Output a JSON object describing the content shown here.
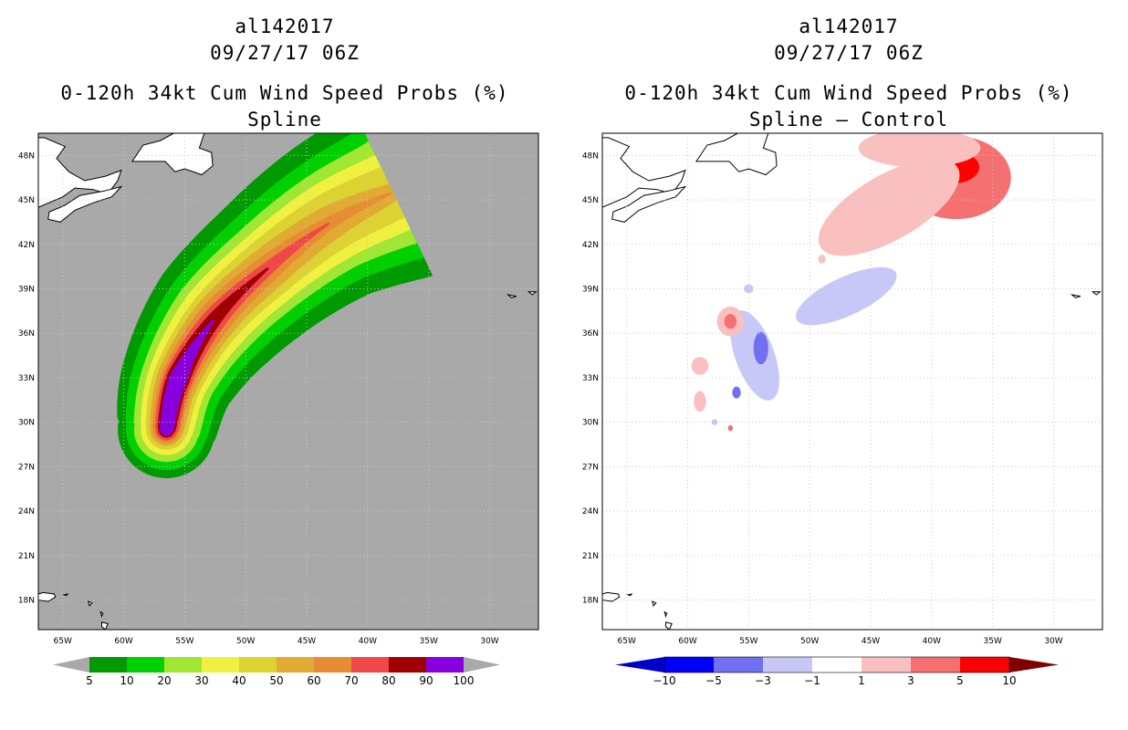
{
  "panels": [
    {
      "storm_id": "al142017",
      "datetime": "09/27/17 06Z",
      "title": "0-120h 34kt Cum Wind Speed Probs (%)",
      "subtitle": "Spline",
      "background": "#a9a9a9",
      "land_fill": "#ffffff"
    },
    {
      "storm_id": "al142017",
      "datetime": "09/27/17 06Z",
      "title": "0-120h 34kt Cum Wind Speed Probs (%)",
      "subtitle": "Spline – Control",
      "background": "#ffffff",
      "land_fill": "#ffffff"
    }
  ],
  "chart_data": [
    {
      "type": "heatmap",
      "title": "0-120h 34kt Cum Wind Speed Probs (%)",
      "subtitle": "Spline",
      "lon_range": [
        -67,
        -26
      ],
      "lat_range": [
        16,
        49.5
      ],
      "x_ticks": [
        "65W",
        "60W",
        "55W",
        "50W",
        "45W",
        "40W",
        "35W",
        "30W"
      ],
      "x_tick_values": [
        -65,
        -60,
        -55,
        -50,
        -45,
        -40,
        -35,
        -30
      ],
      "y_ticks": [
        "18N",
        "21N",
        "24N",
        "27N",
        "30N",
        "33N",
        "36N",
        "39N",
        "42N",
        "45N",
        "48N"
      ],
      "y_tick_values": [
        18,
        21,
        24,
        27,
        30,
        33,
        36,
        39,
        42,
        45,
        48
      ],
      "grid": true,
      "colorbar": {
        "labels": [
          "5",
          "10",
          "20",
          "30",
          "40",
          "50",
          "60",
          "70",
          "80",
          "90",
          "100"
        ],
        "colors": [
          "#009a00",
          "#00d000",
          "#a0e632",
          "#f0f040",
          "#dcd232",
          "#e1aa32",
          "#e68c32",
          "#f04848",
          "#a00000",
          "#8800dd"
        ]
      },
      "storm_track": [
        [
          -56.5,
          29.5
        ],
        [
          -55.5,
          33
        ],
        [
          -52.5,
          37
        ],
        [
          -48,
          40.5
        ],
        [
          -43,
          43.5
        ],
        [
          -38,
          45.5
        ]
      ],
      "levels": [
        {
          "min": 5,
          "color": "#009a00",
          "halfwidth": [
            3.6,
            4.2,
            5.0,
            5.4,
            6.0,
            6.8
          ]
        },
        {
          "min": 10,
          "color": "#00d000",
          "halfwidth": [
            3.0,
            3.4,
            4.0,
            4.3,
            4.7,
            5.3
          ]
        },
        {
          "min": 20,
          "color": "#a0e632",
          "halfwidth": [
            2.4,
            2.7,
            3.2,
            3.4,
            3.7,
            4.1
          ]
        },
        {
          "min": 30,
          "color": "#f0f040",
          "halfwidth": [
            1.9,
            2.2,
            2.6,
            2.7,
            2.9,
            3.0
          ]
        },
        {
          "min": 40,
          "color": "#dcd232",
          "halfwidth": [
            1.5,
            1.8,
            2.0,
            2.1,
            2.1,
            2.0
          ]
        },
        {
          "min": 50,
          "color": "#e1aa32",
          "halfwidth": [
            1.2,
            1.5,
            1.6,
            1.5,
            1.2,
            0.6
          ]
        },
        {
          "min": 60,
          "color": "#e68c32",
          "halfwidth": [
            1.0,
            1.2,
            1.2,
            0.9,
            0.4,
            0.0
          ]
        },
        {
          "min": 70,
          "color": "#f04848",
          "halfwidth": [
            0.8,
            1.0,
            0.8,
            0.4,
            0.0,
            0.0
          ]
        },
        {
          "min": 80,
          "color": "#a00000",
          "halfwidth": [
            0.6,
            0.8,
            0.45,
            0.0,
            0.0,
            0.0
          ]
        },
        {
          "min": 90,
          "color": "#8800dd",
          "halfwidth": [
            0.45,
            0.6,
            0.0,
            0.0,
            0.0,
            0.0
          ]
        }
      ]
    },
    {
      "type": "heatmap",
      "title": "0-120h 34kt Cum Wind Speed Probs (%)",
      "subtitle": "Spline – Control",
      "lon_range": [
        -67,
        -26
      ],
      "lat_range": [
        16,
        49.5
      ],
      "x_ticks": [
        "65W",
        "60W",
        "55W",
        "50W",
        "45W",
        "40W",
        "35W",
        "30W"
      ],
      "x_tick_values": [
        -65,
        -60,
        -55,
        -50,
        -45,
        -40,
        -35,
        -30
      ],
      "y_ticks": [
        "18N",
        "21N",
        "24N",
        "27N",
        "30N",
        "33N",
        "36N",
        "39N",
        "42N",
        "45N",
        "48N"
      ],
      "y_tick_values": [
        18,
        21,
        24,
        27,
        30,
        33,
        36,
        39,
        42,
        45,
        48
      ],
      "grid": true,
      "colorbar": {
        "labels": [
          "−10",
          "−5",
          "−3",
          "−1",
          "1",
          "3",
          "5",
          "10"
        ],
        "colors": [
          "#0000c8",
          "#0000ff",
          "#7070f0",
          "#c8c8f8",
          "#ffffff",
          "#fac0c0",
          "#f57070",
          "#ff0000",
          "#800000"
        ]
      },
      "anomalies": [
        {
          "lon": -38,
          "lat": 46.5,
          "rx": 4.5,
          "ry": 2.8,
          "value": 3,
          "color": "#f57070"
        },
        {
          "lon": -38.3,
          "lat": 47.2,
          "rx": 2.2,
          "ry": 1.1,
          "value": 5,
          "color": "#ff0000"
        },
        {
          "lon": -43.5,
          "lat": 44.5,
          "rx": 6.5,
          "ry": 2.2,
          "value": 1,
          "color": "#fac0c0",
          "angle": -30
        },
        {
          "lon": -41,
          "lat": 48.5,
          "rx": 5,
          "ry": 1.3,
          "value": 1,
          "color": "#fac0c0"
        },
        {
          "lon": -47,
          "lat": 38.5,
          "rx": 4.5,
          "ry": 1.3,
          "value": -1,
          "color": "#c8c8f8",
          "angle": -25
        },
        {
          "lon": -54.5,
          "lat": 34.5,
          "rx": 1.6,
          "ry": 3.2,
          "value": -1,
          "color": "#c8c8f8",
          "angle": -20
        },
        {
          "lon": -54,
          "lat": 35,
          "rx": 0.6,
          "ry": 1.1,
          "value": -3,
          "color": "#7070f0"
        },
        {
          "lon": -56,
          "lat": 32,
          "rx": 0.35,
          "ry": 0.4,
          "value": -3,
          "color": "#7070f0"
        },
        {
          "lon": -56.5,
          "lat": 36.8,
          "rx": 1.1,
          "ry": 1.0,
          "value": 1,
          "color": "#fac0c0"
        },
        {
          "lon": -56.5,
          "lat": 36.8,
          "rx": 0.5,
          "ry": 0.5,
          "value": 3,
          "color": "#f57070"
        },
        {
          "lon": -59,
          "lat": 33.8,
          "rx": 0.7,
          "ry": 0.6,
          "value": 1,
          "color": "#fac0c0"
        },
        {
          "lon": -59,
          "lat": 31.4,
          "rx": 0.5,
          "ry": 0.7,
          "value": 1,
          "color": "#fac0c0"
        },
        {
          "lon": -56.5,
          "lat": 29.6,
          "rx": 0.2,
          "ry": 0.2,
          "value": 3,
          "color": "#f57070"
        },
        {
          "lon": -57.8,
          "lat": 30,
          "rx": 0.25,
          "ry": 0.2,
          "value": -1,
          "color": "#c8c8f8"
        },
        {
          "lon": -55,
          "lat": 39,
          "rx": 0.4,
          "ry": 0.3,
          "value": -1,
          "color": "#c8c8f8"
        },
        {
          "lon": -49,
          "lat": 41,
          "rx": 0.3,
          "ry": 0.3,
          "value": 1,
          "color": "#fac0c0"
        }
      ]
    }
  ]
}
